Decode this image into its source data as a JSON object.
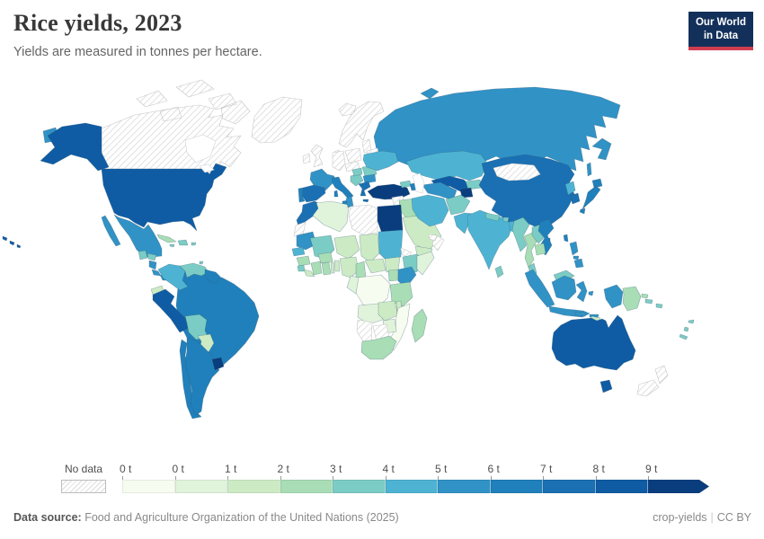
{
  "header": {
    "logo": {
      "line1": "Our World",
      "line2": "in Data"
    }
  },
  "chart_data": {
    "type": "choropleth_map",
    "title": "Rice yields, 2023",
    "subtitle": "Yields are measured in tonnes per hectare.",
    "unit": "tonnes per hectare",
    "legend": {
      "no_data_label": "No data",
      "tick_labels": [
        "0 t",
        "0 t",
        "1 t",
        "2 t",
        "3 t",
        "4 t",
        "5 t",
        "6 t",
        "7 t",
        "8 t",
        "9 t"
      ],
      "bin_ranges": [
        "0-0.5 t",
        "0.5-1 t",
        "1-2 t",
        "2-3 t",
        "3-4 t",
        "4-5 t",
        "5-6 t",
        "6-7 t",
        "7-8 t",
        "8-9 t",
        "9+ t"
      ],
      "bin_colors": [
        "#f7fcf0",
        "#e0f3db",
        "#ccebc5",
        "#a8ddb5",
        "#7bccc4",
        "#4eb3d3",
        "#3192c6",
        "#2080bb",
        "#1a70b2",
        "#0f5ca4",
        "#0a3d7d"
      ]
    },
    "countries": [
      {
        "id": "russia",
        "bin": 6
      },
      {
        "id": "canada",
        "bin": "no_data"
      },
      {
        "id": "greenland",
        "bin": "no_data"
      },
      {
        "id": "united-states",
        "bin": 9
      },
      {
        "id": "mexico",
        "bin": 6
      },
      {
        "id": "guatemala",
        "bin": 4
      },
      {
        "id": "honduras",
        "bin": 4
      },
      {
        "id": "nicaragua",
        "bin": 6
      },
      {
        "id": "costa-rica",
        "bin": 6
      },
      {
        "id": "panama",
        "bin": 6
      },
      {
        "id": "cuba",
        "bin": 3
      },
      {
        "id": "hispaniola",
        "bin": 4
      },
      {
        "id": "jamaica",
        "bin": 4
      },
      {
        "id": "puerto-rico",
        "bin": 4
      },
      {
        "id": "trinidad",
        "bin": 4
      },
      {
        "id": "brazil",
        "bin": 7
      },
      {
        "id": "colombia",
        "bin": 5
      },
      {
        "id": "venezuela",
        "bin": 4
      },
      {
        "id": "guyanas",
        "bin": 7
      },
      {
        "id": "ecuador",
        "bin": 2
      },
      {
        "id": "peru",
        "bin": 9
      },
      {
        "id": "bolivia",
        "bin": 4
      },
      {
        "id": "paraguay",
        "bin": 2
      },
      {
        "id": "chile",
        "bin": 7
      },
      {
        "id": "argentina",
        "bin": 7
      },
      {
        "id": "uruguay",
        "bin": 10
      },
      {
        "id": "united-kingdom",
        "bin": "no_data"
      },
      {
        "id": "ireland",
        "bin": "no_data"
      },
      {
        "id": "iceland",
        "bin": "no_data"
      },
      {
        "id": "scandinavia",
        "bin": "no_data"
      },
      {
        "id": "denmark",
        "bin": "no_data"
      },
      {
        "id": "germany",
        "bin": "no_data"
      },
      {
        "id": "poland",
        "bin": "no_data"
      },
      {
        "id": "baltic-states",
        "bin": "no_data"
      },
      {
        "id": "belarus",
        "bin": "no_data"
      },
      {
        "id": "central-europe",
        "bin": "no_data"
      },
      {
        "id": "france",
        "bin": 6
      },
      {
        "id": "spain",
        "bin": 8
      },
      {
        "id": "portugal",
        "bin": 7
      },
      {
        "id": "italy",
        "bin": 7
      },
      {
        "id": "balkans",
        "bin": 4
      },
      {
        "id": "hungary",
        "bin": 4
      },
      {
        "id": "romania",
        "bin": 4
      },
      {
        "id": "bulgaria",
        "bin": 6
      },
      {
        "id": "greece",
        "bin": 8
      },
      {
        "id": "ukraine",
        "bin": 5
      },
      {
        "id": "turkey",
        "bin": 10
      },
      {
        "id": "georgia",
        "bin": 4
      },
      {
        "id": "azerbaijan",
        "bin": 7
      },
      {
        "id": "syria",
        "bin": "no_data"
      },
      {
        "id": "israel-jordan",
        "bin": "no_data"
      },
      {
        "id": "iraq",
        "bin": 3
      },
      {
        "id": "saudi-arabia",
        "bin": 2
      },
      {
        "id": "yemen",
        "bin": 2
      },
      {
        "id": "oman",
        "bin": "no_data"
      },
      {
        "id": "uae",
        "bin": "no_data"
      },
      {
        "id": "iran",
        "bin": 5
      },
      {
        "id": "kazakhstan",
        "bin": 5
      },
      {
        "id": "uzbekistan",
        "bin": 9
      },
      {
        "id": "turkmenistan",
        "bin": 6
      },
      {
        "id": "kyrgyzstan",
        "bin": 4
      },
      {
        "id": "tajikistan",
        "bin": 10
      },
      {
        "id": "afghanistan",
        "bin": 4
      },
      {
        "id": "pakistan",
        "bin": 5
      },
      {
        "id": "china",
        "bin": 8
      },
      {
        "id": "mongolia",
        "bin": "no_data"
      },
      {
        "id": "india",
        "bin": 5
      },
      {
        "id": "nepal",
        "bin": 4
      },
      {
        "id": "bhutan",
        "bin": 4
      },
      {
        "id": "bangladesh",
        "bin": 5
      },
      {
        "id": "sri-lanka",
        "bin": 4
      },
      {
        "id": "hainan",
        "bin": 7
      },
      {
        "id": "taiwan",
        "bin": 7
      },
      {
        "id": "north-korea",
        "bin": 5
      },
      {
        "id": "south-korea",
        "bin": 8
      },
      {
        "id": "japan",
        "bin": 7
      },
      {
        "id": "myanmar",
        "bin": 4
      },
      {
        "id": "thailand",
        "bin": 3
      },
      {
        "id": "laos",
        "bin": 4
      },
      {
        "id": "vietnam",
        "bin": 7
      },
      {
        "id": "cambodia",
        "bin": 3
      },
      {
        "id": "malaysia",
        "bin": 4
      },
      {
        "id": "indonesia",
        "bin": 6
      },
      {
        "id": "philippines",
        "bin": 6
      },
      {
        "id": "papua-new-guinea",
        "bin": 3
      },
      {
        "id": "timor",
        "bin": 2
      },
      {
        "id": "solomon-islands",
        "bin": 4
      },
      {
        "id": "pacific-islands",
        "bin": 4
      },
      {
        "id": "australia",
        "bin": 9
      },
      {
        "id": "new-zealand",
        "bin": "no_data"
      },
      {
        "id": "morocco",
        "bin": 8
      },
      {
        "id": "algeria",
        "bin": 1
      },
      {
        "id": "tunisia",
        "bin": 6
      },
      {
        "id": "libya",
        "bin": "no_data"
      },
      {
        "id": "egypt",
        "bin": 10
      },
      {
        "id": "western-sahara",
        "bin": "no_data"
      },
      {
        "id": "mauritania",
        "bin": 6
      },
      {
        "id": "mali",
        "bin": 4
      },
      {
        "id": "niger",
        "bin": 2
      },
      {
        "id": "chad",
        "bin": 2
      },
      {
        "id": "sudan",
        "bin": 5
      },
      {
        "id": "eritrea",
        "bin": "no_data"
      },
      {
        "id": "ethiopia",
        "bin": 4
      },
      {
        "id": "somalia",
        "bin": 1
      },
      {
        "id": "senegal",
        "bin": 5
      },
      {
        "id": "guinea",
        "bin": 3
      },
      {
        "id": "sierra-leone",
        "bin": 4
      },
      {
        "id": "liberia",
        "bin": 2
      },
      {
        "id": "ivory-coast",
        "bin": 3
      },
      {
        "id": "burkina-faso",
        "bin": 3
      },
      {
        "id": "ghana",
        "bin": 3
      },
      {
        "id": "togo",
        "bin": 2
      },
      {
        "id": "benin",
        "bin": 2
      },
      {
        "id": "nigeria",
        "bin": 2
      },
      {
        "id": "cameroon",
        "bin": 3
      },
      {
        "id": "central-african-republic",
        "bin": 2
      },
      {
        "id": "south-sudan",
        "bin": 2
      },
      {
        "id": "uganda",
        "bin": 3
      },
      {
        "id": "kenya",
        "bin": 6
      },
      {
        "id": "drc",
        "bin": 0
      },
      {
        "id": "congo-gabon",
        "bin": 1
      },
      {
        "id": "tanzania",
        "bin": 3
      },
      {
        "id": "angola",
        "bin": 1
      },
      {
        "id": "zambia",
        "bin": 2
      },
      {
        "id": "malawi",
        "bin": 2
      },
      {
        "id": "mozambique",
        "bin": 0
      },
      {
        "id": "zimbabwe",
        "bin": 1
      },
      {
        "id": "botswana",
        "bin": "no_data"
      },
      {
        "id": "namibia",
        "bin": "no_data"
      },
      {
        "id": "south-africa",
        "bin": 3
      },
      {
        "id": "madagascar",
        "bin": 3
      }
    ]
  },
  "footer": {
    "source_label": "Data source:",
    "source_text": " Food and Agriculture Organization of the United Nations (2025)",
    "slug": "crop-yields",
    "separator": "|",
    "license": "CC BY"
  },
  "colors": {
    "title": "#383838",
    "subtitle": "#656565",
    "logo_bg": "#12305a",
    "logo_accent": "#d13d4e",
    "country_border": "rgba(55,90,110,0.45)",
    "no_data_border": "#c6c6c6",
    "water_fill": "#ffffff",
    "water_border": "#cbd4d9",
    "legend_text": "#4f4f4f",
    "tick": "#9a9a9a",
    "footer_text": "#898989",
    "footer_label": "#565656"
  }
}
